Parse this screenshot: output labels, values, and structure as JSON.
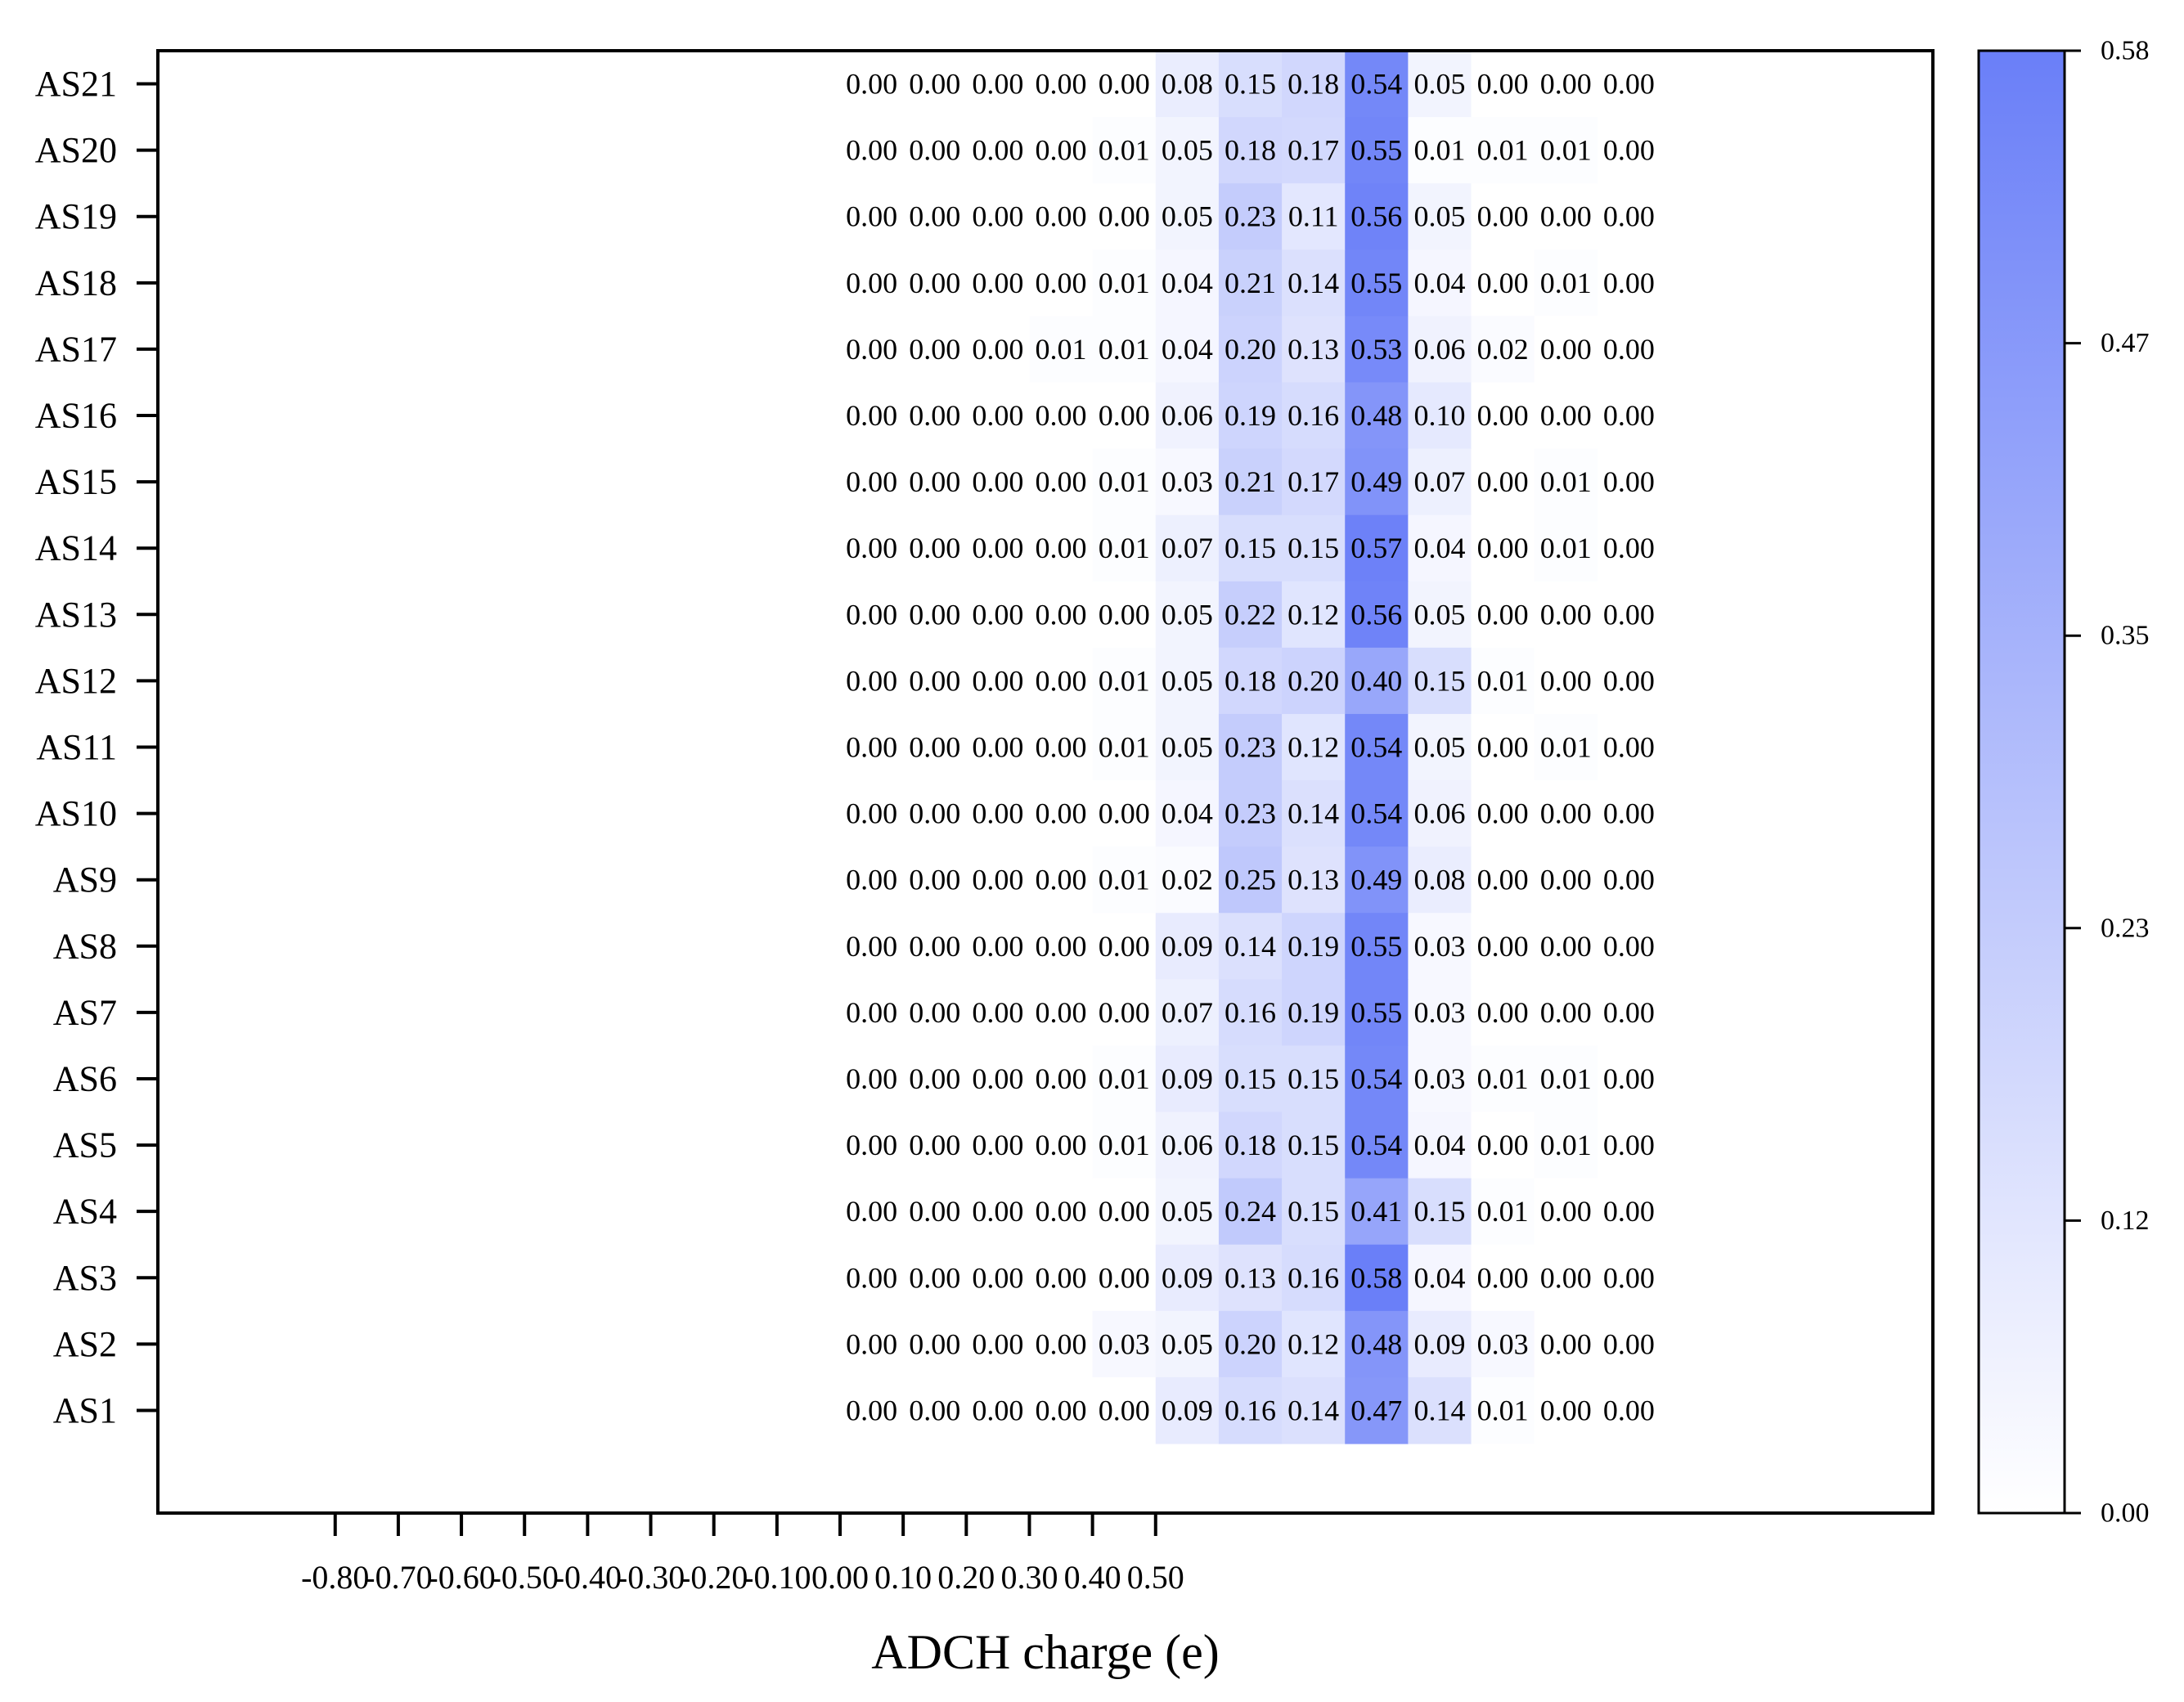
{
  "chart_data": {
    "type": "heatmap",
    "title": "",
    "xlabel": "ADCH charge (e)",
    "ylabel": "",
    "x_bins": [
      "-0.80",
      "-0.70",
      "-0.60",
      "-0.50",
      "-0.40",
      "-0.30",
      "-0.20",
      "-0.10",
      "0.00",
      "0.10",
      "0.20",
      "0.30",
      "0.40",
      "0.50"
    ],
    "x_ticks": [
      "-0.80",
      "-0.70",
      "-0.60",
      "-0.50",
      "-0.40",
      "-0.30",
      "-0.20",
      "-0.10",
      "0.00",
      "0.10",
      "0.20",
      "0.30",
      "0.40",
      "0.50"
    ],
    "rows": [
      "AS21",
      "AS20",
      "AS19",
      "AS18",
      "AS17",
      "AS16",
      "AS15",
      "AS14",
      "AS13",
      "AS12",
      "AS11",
      "AS10",
      "AS9",
      "AS8",
      "AS7",
      "AS6",
      "AS5",
      "AS4",
      "AS3",
      "AS2",
      "AS1"
    ],
    "values": [
      [
        "0.00",
        "0.00",
        "0.00",
        "0.00",
        "0.00",
        "0.08",
        "0.15",
        "0.18",
        "0.54",
        "0.05",
        "0.00",
        "0.00",
        "0.00"
      ],
      [
        "0.00",
        "0.00",
        "0.00",
        "0.00",
        "0.01",
        "0.05",
        "0.18",
        "0.17",
        "0.55",
        "0.01",
        "0.01",
        "0.01",
        "0.00"
      ],
      [
        "0.00",
        "0.00",
        "0.00",
        "0.00",
        "0.00",
        "0.05",
        "0.23",
        "0.11",
        "0.56",
        "0.05",
        "0.00",
        "0.00",
        "0.00"
      ],
      [
        "0.00",
        "0.00",
        "0.00",
        "0.00",
        "0.01",
        "0.04",
        "0.21",
        "0.14",
        "0.55",
        "0.04",
        "0.00",
        "0.01",
        "0.00"
      ],
      [
        "0.00",
        "0.00",
        "0.00",
        "0.01",
        "0.01",
        "0.04",
        "0.20",
        "0.13",
        "0.53",
        "0.06",
        "0.02",
        "0.00",
        "0.00"
      ],
      [
        "0.00",
        "0.00",
        "0.00",
        "0.00",
        "0.00",
        "0.06",
        "0.19",
        "0.16",
        "0.48",
        "0.10",
        "0.00",
        "0.00",
        "0.00"
      ],
      [
        "0.00",
        "0.00",
        "0.00",
        "0.00",
        "0.01",
        "0.03",
        "0.21",
        "0.17",
        "0.49",
        "0.07",
        "0.00",
        "0.01",
        "0.00"
      ],
      [
        "0.00",
        "0.00",
        "0.00",
        "0.00",
        "0.01",
        "0.07",
        "0.15",
        "0.15",
        "0.57",
        "0.04",
        "0.00",
        "0.01",
        "0.00"
      ],
      [
        "0.00",
        "0.00",
        "0.00",
        "0.00",
        "0.00",
        "0.05",
        "0.22",
        "0.12",
        "0.56",
        "0.05",
        "0.00",
        "0.00",
        "0.00"
      ],
      [
        "0.00",
        "0.00",
        "0.00",
        "0.00",
        "0.01",
        "0.05",
        "0.18",
        "0.20",
        "0.40",
        "0.15",
        "0.01",
        "0.00",
        "0.00"
      ],
      [
        "0.00",
        "0.00",
        "0.00",
        "0.00",
        "0.01",
        "0.05",
        "0.23",
        "0.12",
        "0.54",
        "0.05",
        "0.00",
        "0.01",
        "0.00"
      ],
      [
        "0.00",
        "0.00",
        "0.00",
        "0.00",
        "0.00",
        "0.04",
        "0.23",
        "0.14",
        "0.54",
        "0.06",
        "0.00",
        "0.00",
        "0.00"
      ],
      [
        "0.00",
        "0.00",
        "0.00",
        "0.00",
        "0.01",
        "0.02",
        "0.25",
        "0.13",
        "0.49",
        "0.08",
        "0.00",
        "0.00",
        "0.00"
      ],
      [
        "0.00",
        "0.00",
        "0.00",
        "0.00",
        "0.00",
        "0.09",
        "0.14",
        "0.19",
        "0.55",
        "0.03",
        "0.00",
        "0.00",
        "0.00"
      ],
      [
        "0.00",
        "0.00",
        "0.00",
        "0.00",
        "0.00",
        "0.07",
        "0.16",
        "0.19",
        "0.55",
        "0.03",
        "0.00",
        "0.00",
        "0.00"
      ],
      [
        "0.00",
        "0.00",
        "0.00",
        "0.00",
        "0.01",
        "0.09",
        "0.15",
        "0.15",
        "0.54",
        "0.03",
        "0.01",
        "0.01",
        "0.00"
      ],
      [
        "0.00",
        "0.00",
        "0.00",
        "0.00",
        "0.01",
        "0.06",
        "0.18",
        "0.15",
        "0.54",
        "0.04",
        "0.00",
        "0.01",
        "0.00"
      ],
      [
        "0.00",
        "0.00",
        "0.00",
        "0.00",
        "0.00",
        "0.05",
        "0.24",
        "0.15",
        "0.41",
        "0.15",
        "0.01",
        "0.00",
        "0.00"
      ],
      [
        "0.00",
        "0.00",
        "0.00",
        "0.00",
        "0.00",
        "0.09",
        "0.13",
        "0.16",
        "0.58",
        "0.04",
        "0.00",
        "0.00",
        "0.00"
      ],
      [
        "0.00",
        "0.00",
        "0.00",
        "0.00",
        "0.03",
        "0.05",
        "0.20",
        "0.12",
        "0.48",
        "0.09",
        "0.03",
        "0.00",
        "0.00"
      ],
      [
        "0.00",
        "0.00",
        "0.00",
        "0.00",
        "0.00",
        "0.09",
        "0.16",
        "0.14",
        "0.47",
        "0.14",
        "0.01",
        "0.00",
        "0.00"
      ]
    ],
    "colorbar": {
      "min": 0.0,
      "max": 0.58,
      "ticks": [
        "0.00",
        "0.12",
        "0.23",
        "0.35",
        "0.47",
        "0.58"
      ],
      "color_low": "#ffffff",
      "color_high": "#6a7ff8"
    },
    "grid": false
  }
}
